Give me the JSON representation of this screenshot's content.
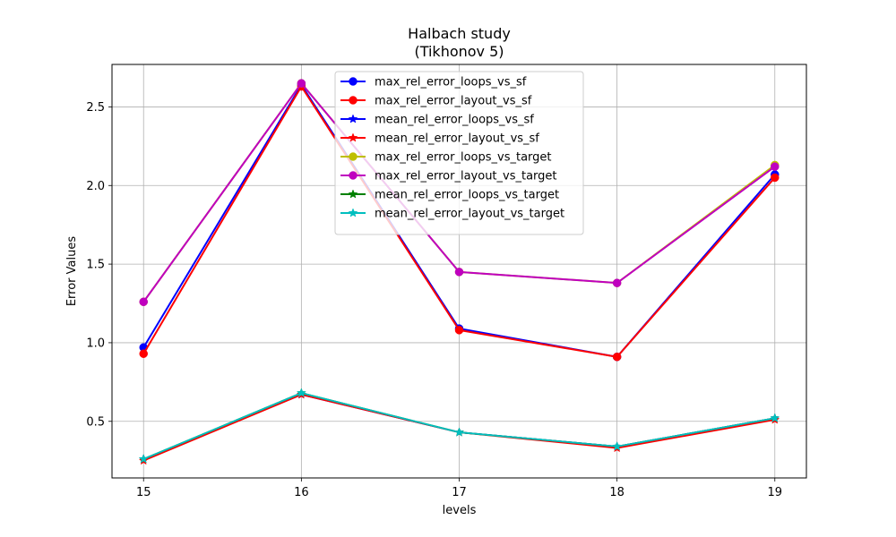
{
  "chart_data": {
    "type": "line",
    "title": "Halbach study",
    "subtitle": "(Tikhonov 5)",
    "xlabel": "levels",
    "ylabel": "Error Values",
    "x": [
      15,
      16,
      17,
      18,
      19
    ],
    "x_tick_labels": [
      "15",
      "16",
      "17",
      "18",
      "19"
    ],
    "xlim": [
      14.8,
      19.2
    ],
    "ylim": [
      0.14,
      2.77
    ],
    "y_ticks": [
      0.5,
      1.0,
      1.5,
      2.0,
      2.5
    ],
    "y_tick_labels": [
      "0.5",
      "1.0",
      "1.5",
      "2.0",
      "2.5"
    ],
    "grid": true,
    "legend_position": "top-center",
    "series": [
      {
        "name": "max_rel_error_loops_vs_sf",
        "color": "#0000ff",
        "marker": "circle",
        "values": [
          0.97,
          2.64,
          1.09,
          0.91,
          2.07
        ]
      },
      {
        "name": "max_rel_error_layout_vs_sf",
        "color": "#ff0000",
        "marker": "circle",
        "values": [
          0.93,
          2.63,
          1.08,
          0.91,
          2.05
        ]
      },
      {
        "name": "mean_rel_error_loops_vs_sf",
        "color": "#0000ff",
        "marker": "star",
        "values": [
          0.26,
          0.67,
          0.43,
          0.34,
          0.52
        ]
      },
      {
        "name": "mean_rel_error_layout_vs_sf",
        "color": "#ff0000",
        "marker": "star",
        "values": [
          0.25,
          0.67,
          0.43,
          0.33,
          0.51
        ]
      },
      {
        "name": "max_rel_error_loops_vs_target",
        "color": "#bfbf00",
        "marker": "circle",
        "values": [
          1.26,
          2.65,
          1.45,
          1.38,
          2.13
        ]
      },
      {
        "name": "max_rel_error_layout_vs_target",
        "color": "#bf00bf",
        "marker": "circle",
        "values": [
          1.26,
          2.65,
          1.45,
          1.38,
          2.12
        ]
      },
      {
        "name": "mean_rel_error_loops_vs_target",
        "color": "#008000",
        "marker": "star",
        "values": [
          0.26,
          0.68,
          0.43,
          0.34,
          0.52
        ]
      },
      {
        "name": "mean_rel_error_layout_vs_target",
        "color": "#00bfbf",
        "marker": "star",
        "values": [
          0.26,
          0.68,
          0.43,
          0.34,
          0.52
        ]
      }
    ]
  }
}
